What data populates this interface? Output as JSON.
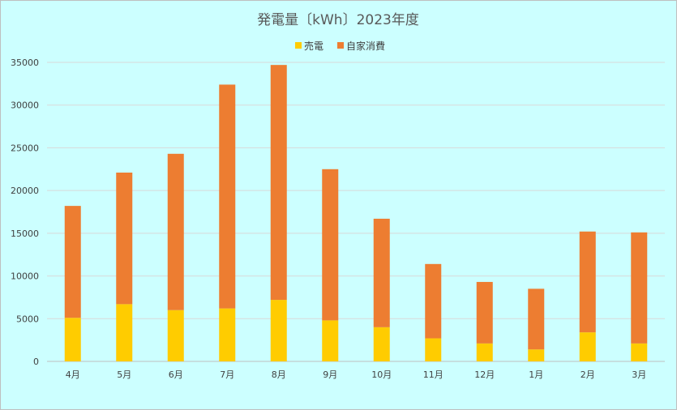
{
  "chart_data": {
    "type": "bar",
    "stacked": true,
    "title": "発電量〔kWh〕2023年度",
    "categories": [
      "4月",
      "5月",
      "6月",
      "7月",
      "8月",
      "9月",
      "10月",
      "11月",
      "12月",
      "1月",
      "2月",
      "3月"
    ],
    "series": [
      {
        "name": "売電",
        "color": "#ffcc00",
        "values": [
          5100,
          6700,
          6000,
          6200,
          7200,
          4800,
          4000,
          2700,
          2100,
          1400,
          3400,
          2100
        ]
      },
      {
        "name": "自家消費",
        "color": "#ed7d31",
        "values": [
          13100,
          15400,
          18300,
          26200,
          27500,
          17700,
          12700,
          8700,
          7200,
          7100,
          11800,
          13000
        ]
      }
    ],
    "ylim": [
      0,
      35000
    ],
    "yticks": [
      "0",
      "5000",
      "10000",
      "15000",
      "20000",
      "25000",
      "30000",
      "35000"
    ],
    "grid": true,
    "legend_position": "top-center"
  }
}
